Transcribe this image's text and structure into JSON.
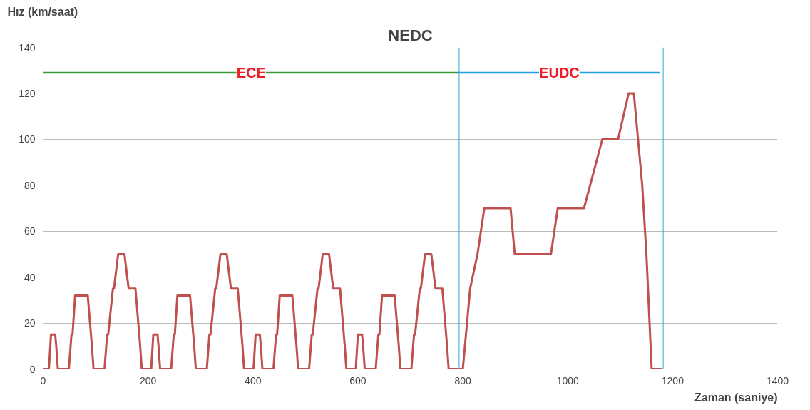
{
  "chart_data": {
    "type": "line",
    "title": "NEDC",
    "xlabel": "Zaman (saniye)",
    "ylabel": "Hız (km/saat)",
    "x": [
      0,
      11,
      15,
      23,
      25,
      28,
      49,
      54,
      56,
      61,
      85,
      93,
      96,
      117,
      122,
      124,
      133,
      135,
      143,
      155,
      163,
      176,
      185,
      188,
      195,
      206,
      210,
      218,
      220,
      223,
      244,
      249,
      251,
      256,
      280,
      288,
      291,
      312,
      317,
      319,
      328,
      330,
      338,
      350,
      358,
      371,
      380,
      383,
      390,
      401,
      405,
      413,
      415,
      418,
      439,
      444,
      446,
      451,
      475,
      483,
      486,
      507,
      512,
      514,
      523,
      525,
      533,
      545,
      553,
      566,
      575,
      578,
      585,
      596,
      600,
      608,
      610,
      613,
      634,
      639,
      641,
      646,
      670,
      678,
      681,
      702,
      707,
      709,
      718,
      720,
      728,
      740,
      748,
      761,
      770,
      773,
      780,
      800,
      806,
      814,
      828,
      841,
      891,
      899,
      968,
      981,
      1031,
      1066,
      1096,
      1116,
      1126,
      1142,
      1150,
      1160,
      1180
    ],
    "series": [
      {
        "color": "#c0504d",
        "values": [
          0,
          0,
          15,
          15,
          10,
          0,
          0,
          15,
          15,
          32,
          32,
          10,
          0,
          0,
          15,
          15,
          35,
          35,
          50,
          50,
          35,
          35,
          10,
          0,
          0,
          0,
          15,
          15,
          10,
          0,
          0,
          15,
          15,
          32,
          32,
          10,
          0,
          0,
          15,
          15,
          35,
          35,
          50,
          50,
          35,
          35,
          10,
          0,
          0,
          0,
          15,
          15,
          10,
          0,
          0,
          15,
          15,
          32,
          32,
          10,
          0,
          0,
          15,
          15,
          35,
          35,
          50,
          50,
          35,
          35,
          10,
          0,
          0,
          0,
          15,
          15,
          10,
          0,
          0,
          15,
          15,
          32,
          32,
          10,
          0,
          0,
          15,
          15,
          35,
          35,
          50,
          50,
          35,
          35,
          10,
          0,
          0,
          0,
          15,
          35,
          50,
          70,
          70,
          50,
          50,
          70,
          70,
          100,
          100,
          120,
          120,
          80,
          50,
          0,
          0
        ]
      },
      {
        "name": "ECE",
        "color": "#3a9a3a",
        "x": [
          0,
          793
        ],
        "values": [
          129,
          129
        ]
      },
      {
        "name": "EUDC",
        "color": "#1fa0e0",
        "x": [
          793,
          1175
        ],
        "values": [
          129,
          129
        ]
      }
    ],
    "xlim": [
      0,
      1400
    ],
    "xticks": [
      0,
      200,
      400,
      600,
      800,
      1000,
      1200,
      1400
    ],
    "ylim": [
      0,
      140
    ],
    "yticks": [
      0,
      20,
      40,
      60,
      80,
      100,
      120,
      140
    ],
    "grid": "y",
    "marker": "none",
    "line_style": "solid",
    "ref_lines": [
      {
        "axis": "x",
        "value": 793,
        "color": "#29a8e0"
      },
      {
        "axis": "x",
        "value": 1182,
        "color": "#29a8e0"
      }
    ]
  }
}
